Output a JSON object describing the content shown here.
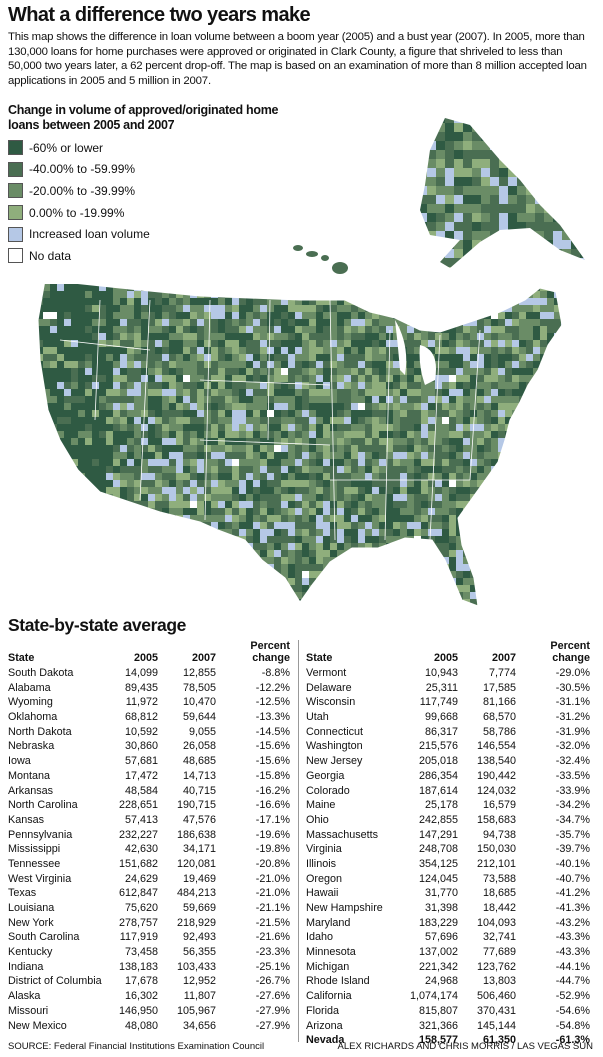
{
  "header": {
    "title": "What a difference two years make",
    "description": "This map shows the difference in loan volume between a boom year (2005) and a bust year (2007). In 2005, more than 130,000 loans for home purchases were approved or originated in Clark County, a figure that shriveled to less than 50,000 two years later, a 62 percent drop-off. The map is based on an examination of more than 8 million accepted loan applications in 2005 and 5 million in 2007."
  },
  "legend": {
    "title": "Change in volume of approved/originated home loans between 2005 and 2007",
    "items": [
      {
        "label": "-60% or lower",
        "color": "#2f5a43"
      },
      {
        "label": "-40.00% to -59.99%",
        "color": "#4a6e52"
      },
      {
        "label": "-20.00% to -39.99%",
        "color": "#6a8c66"
      },
      {
        "label": "0.00% to -19.99%",
        "color": "#8fae7c"
      },
      {
        "label": "Increased loan volume",
        "color": "#b5c8e6"
      },
      {
        "label": "No data",
        "color": "#ffffff"
      }
    ]
  },
  "table": {
    "title": "State-by-state average",
    "left": {
      "columns": [
        "State",
        "2005",
        "2007",
        "Percent change"
      ],
      "rows": [
        [
          "South Dakota",
          "14,099",
          "12,855",
          "-8.8%"
        ],
        [
          "Alabama",
          "89,435",
          "78,505",
          "-12.2%"
        ],
        [
          "Wyoming",
          "11,972",
          "10,470",
          "-12.5%"
        ],
        [
          "Oklahoma",
          "68,812",
          "59,644",
          "-13.3%"
        ],
        [
          "North Dakota",
          "10,592",
          "9,055",
          "-14.5%"
        ],
        [
          "Nebraska",
          "30,860",
          "26,058",
          "-15.6%"
        ],
        [
          "Iowa",
          "57,681",
          "48,685",
          "-15.6%"
        ],
        [
          "Montana",
          "17,472",
          "14,713",
          "-15.8%"
        ],
        [
          "Arkansas",
          "48,584",
          "40,715",
          "-16.2%"
        ],
        [
          "North Carolina",
          "228,651",
          "190,715",
          "-16.6%"
        ],
        [
          "Kansas",
          "57,413",
          "47,576",
          "-17.1%"
        ],
        [
          "Pennsylvania",
          "232,227",
          "186,638",
          "-19.6%"
        ],
        [
          "Mississippi",
          "42,630",
          "34,171",
          "-19.8%"
        ],
        [
          "Tennessee",
          "151,682",
          "120,081",
          "-20.8%"
        ],
        [
          "West Virginia",
          "24,629",
          "19,469",
          "-21.0%"
        ],
        [
          "Texas",
          "612,847",
          "484,213",
          "-21.0%"
        ],
        [
          "Louisiana",
          "75,620",
          "59,669",
          "-21.1%"
        ],
        [
          "New York",
          "278,757",
          "218,929",
          "-21.5%"
        ],
        [
          "South Carolina",
          "117,919",
          "92,493",
          "-21.6%"
        ],
        [
          "Kentucky",
          "73,458",
          "56,355",
          "-23.3%"
        ],
        [
          "Indiana",
          "138,183",
          "103,433",
          "-25.1%"
        ],
        [
          "District of Columbia",
          "17,678",
          "12,952",
          "-26.7%"
        ],
        [
          "Alaska",
          "16,302",
          "11,807",
          "-27.6%"
        ],
        [
          "Missouri",
          "146,950",
          "105,967",
          "-27.9%"
        ],
        [
          "New Mexico",
          "48,080",
          "34,656",
          "-27.9%"
        ]
      ]
    },
    "right": {
      "columns": [
        "State",
        "2005",
        "2007",
        "Percent change"
      ],
      "rows": [
        [
          "Vermont",
          "10,943",
          "7,774",
          "-29.0%"
        ],
        [
          "Delaware",
          "25,311",
          "17,585",
          "-30.5%"
        ],
        [
          "Wisconsin",
          "117,749",
          "81,166",
          "-31.1%"
        ],
        [
          "Utah",
          "99,668",
          "68,570",
          "-31.2%"
        ],
        [
          "Connecticut",
          "86,317",
          "58,786",
          "-31.9%"
        ],
        [
          "Washington",
          "215,576",
          "146,554",
          "-32.0%"
        ],
        [
          "New Jersey",
          "205,018",
          "138,540",
          "-32.4%"
        ],
        [
          "Georgia",
          "286,354",
          "190,442",
          "-33.5%"
        ],
        [
          "Colorado",
          "187,614",
          "124,032",
          "-33.9%"
        ],
        [
          "Maine",
          "25,178",
          "16,579",
          "-34.2%"
        ],
        [
          "Ohio",
          "242,855",
          "158,683",
          "-34.7%"
        ],
        [
          "Massachusetts",
          "147,291",
          "94,738",
          "-35.7%"
        ],
        [
          "Virginia",
          "248,708",
          "150,030",
          "-39.7%"
        ],
        [
          "Illinois",
          "354,125",
          "212,101",
          "-40.1%"
        ],
        [
          "Oregon",
          "124,045",
          "73,588",
          "-40.7%"
        ],
        [
          "Hawaii",
          "31,770",
          "18,685",
          "-41.2%"
        ],
        [
          "New Hampshire",
          "31,398",
          "18,442",
          "-41.3%"
        ],
        [
          "Maryland",
          "183,229",
          "104,093",
          "-43.2%"
        ],
        [
          "Idaho",
          "57,696",
          "32,741",
          "-43.3%"
        ],
        [
          "Minnesota",
          "137,002",
          "77,689",
          "-43.3%"
        ],
        [
          "Michigan",
          "221,342",
          "123,762",
          "-44.1%"
        ],
        [
          "Rhode Island",
          "24,968",
          "13,803",
          "-44.7%"
        ],
        [
          "California",
          "1,074,174",
          "506,460",
          "-52.9%"
        ],
        [
          "Florida",
          "815,807",
          "370,431",
          "-54.6%"
        ],
        [
          "Arizona",
          "321,366",
          "145,144",
          "-54.8%"
        ],
        [
          "Nevada",
          "158,577",
          "61,350",
          "-61.3%"
        ]
      ]
    }
  },
  "footer": {
    "source": "SOURCE: Federal Financial Institutions Examination Council",
    "credit": "ALEX RICHARDS AND CHRIS MORRIS / LAS VEGAS SUN"
  }
}
